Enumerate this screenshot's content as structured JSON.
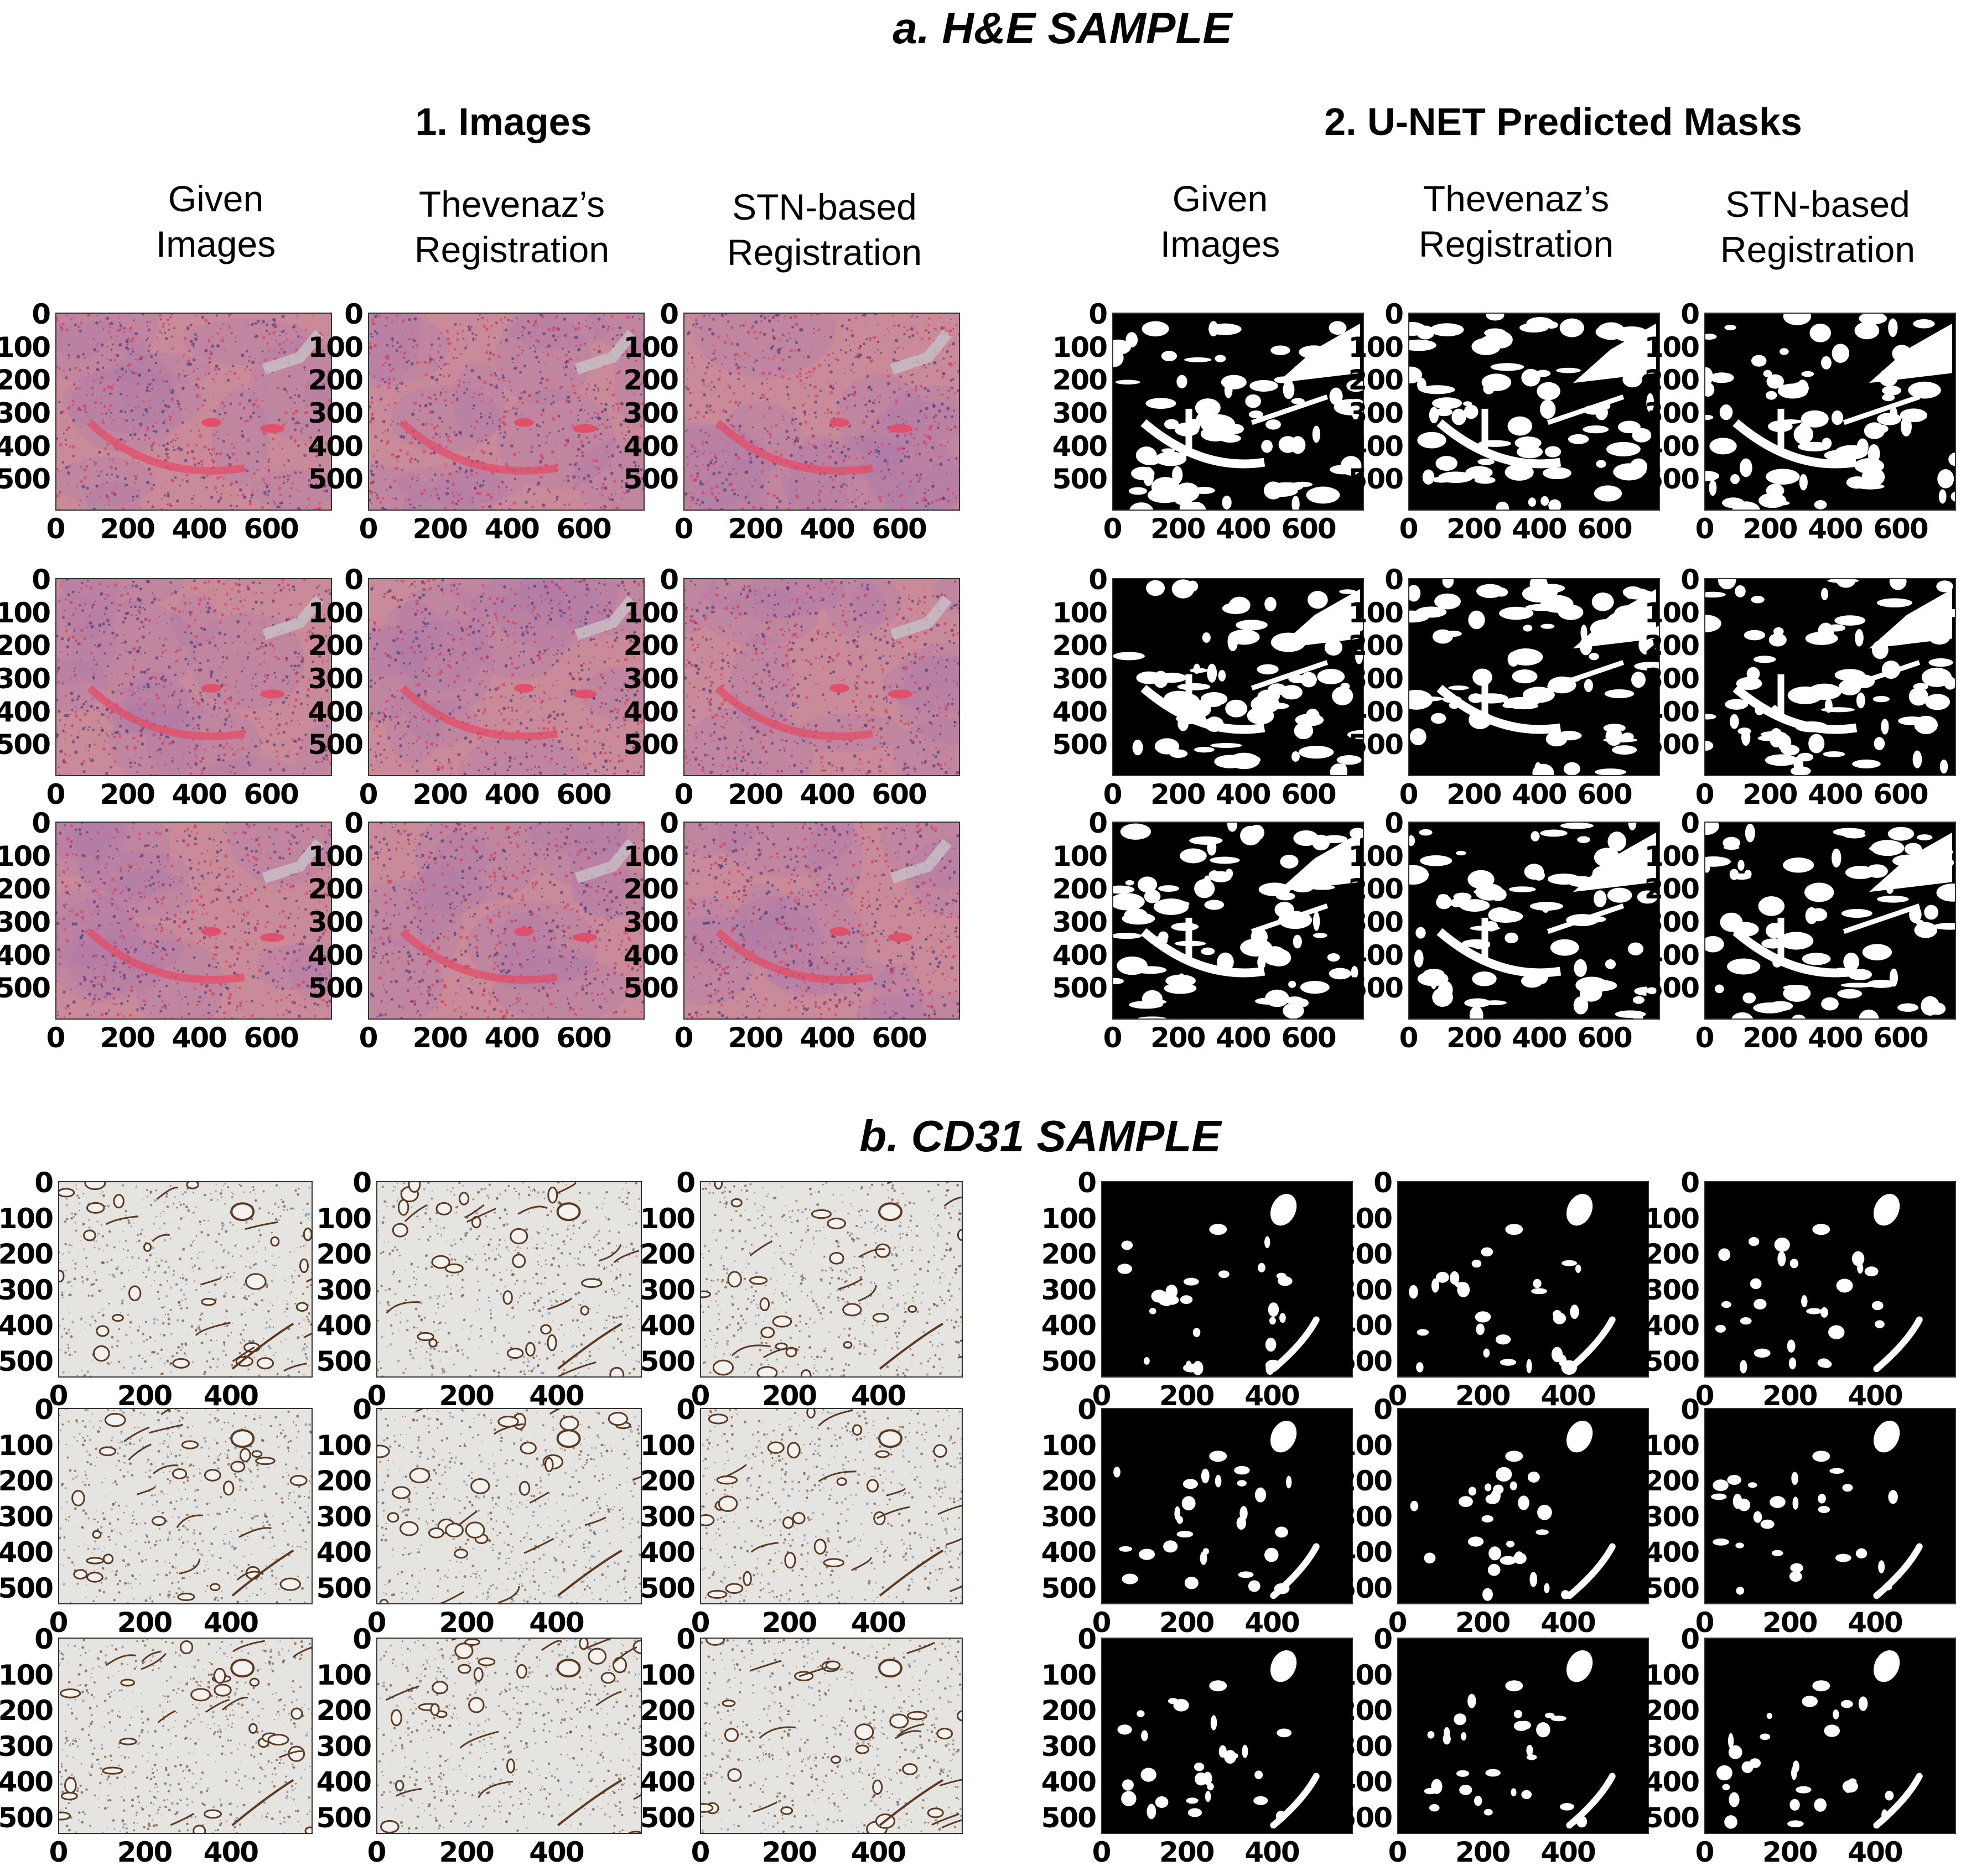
{
  "section_a": {
    "title": "a. H&E SAMPLE",
    "images_heading": "1. Images",
    "masks_heading": "2. U-NET Predicted Masks"
  },
  "section_b": {
    "title": "b. CD31 SAMPLE"
  },
  "column_headers": {
    "given": [
      "Given",
      "Images"
    ],
    "thevenaz": [
      "Thevenaz’s",
      "Registration"
    ],
    "stn": [
      "STN-based",
      "Registration"
    ]
  },
  "he_axes": {
    "y_ticks": [
      "0",
      "100",
      "200",
      "300",
      "400",
      "500"
    ],
    "x_ticks": [
      "0",
      "200",
      "400",
      "600"
    ]
  },
  "cd31_axes": {
    "y_ticks": [
      "0",
      "100",
      "200",
      "300",
      "400",
      "500"
    ],
    "x_ticks": [
      "0",
      "200",
      "400"
    ]
  },
  "colors": {
    "he_tissue": "#c98a9a",
    "he_vessel": "#e0506a",
    "cd31_background": "#e6e4e0",
    "cd31_stain": "#5a3a22",
    "mask_background": "#000000",
    "mask_foreground": "#ffffff"
  }
}
